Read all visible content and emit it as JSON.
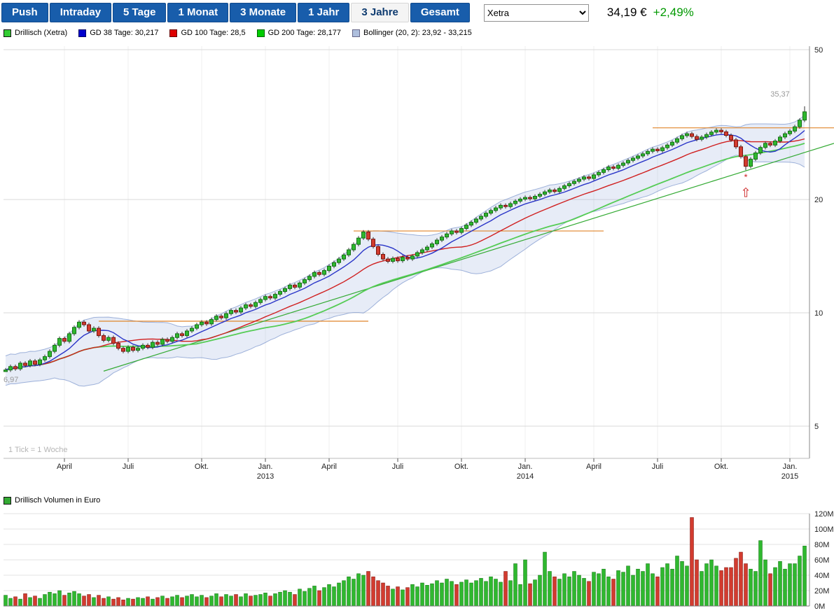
{
  "toolbar": {
    "buttons": [
      {
        "label": "Push",
        "active": false
      },
      {
        "label": "Intraday",
        "active": false
      },
      {
        "label": "5 Tage",
        "active": false
      },
      {
        "label": "1 Monat",
        "active": false
      },
      {
        "label": "3 Monate",
        "active": false
      },
      {
        "label": "1 Jahr",
        "active": false
      },
      {
        "label": "3 Jahre",
        "active": true
      },
      {
        "label": "Gesamt",
        "active": false
      }
    ],
    "exchange_select": {
      "value": "Xetra",
      "options": [
        "Xetra"
      ]
    },
    "price": "34,19 €",
    "change": "+2,49%",
    "change_color": "#009900"
  },
  "legend": {
    "items": [
      {
        "label": "Drillisch (Xetra)",
        "color": "#33cc33",
        "border": "#111111"
      },
      {
        "label": "GD 38 Tage: 30,217",
        "color": "#0000cc",
        "border": "#000066"
      },
      {
        "label": "GD 100 Tage: 28,5",
        "color": "#dd0000",
        "border": "#660000"
      },
      {
        "label": "GD 200 Tage: 28,177",
        "color": "#00cc00",
        "border": "#006600"
      },
      {
        "label": "Bollinger (20, 2): 23,92 - 33,215",
        "color": "#aebfdd",
        "border": "#666688"
      }
    ]
  },
  "volume_legend": {
    "label": "Drillisch Volumen in Euro",
    "color": "#33aa33",
    "border": "#111111"
  },
  "chart_data": [
    {
      "type": "candlestick",
      "title": "Drillisch (Xetra)",
      "timeframe_note": "1 Tick = 1 Woche",
      "y_scale": "log",
      "ylim": [
        4.6,
        52
      ],
      "x_unit": "week",
      "y_ticks": [
        {
          "value": 50,
          "label": "50"
        },
        {
          "value": 20,
          "label": "20"
        },
        {
          "value": 10,
          "label": "10"
        },
        {
          "value": 5,
          "label": "5"
        }
      ],
      "x_ticks": [
        {
          "week": 12,
          "label": "April"
        },
        {
          "week": 25,
          "label": "Juli"
        },
        {
          "week": 40,
          "label": "Okt."
        },
        {
          "week": 53,
          "label": "Jan.",
          "year": "2013"
        },
        {
          "week": 66,
          "label": "April"
        },
        {
          "week": 80,
          "label": "Juli"
        },
        {
          "week": 93,
          "label": "Okt."
        },
        {
          "week": 106,
          "label": "Jan.",
          "year": "2014"
        },
        {
          "week": 120,
          "label": "April"
        },
        {
          "week": 133,
          "label": "Juli"
        },
        {
          "week": 146,
          "label": "Okt."
        },
        {
          "week": 160,
          "label": "Jan.",
          "year": "2015"
        }
      ],
      "closes": [
        7.05,
        7.2,
        7.1,
        7.35,
        7.25,
        7.45,
        7.3,
        7.5,
        7.65,
        7.9,
        8.2,
        8.55,
        8.4,
        8.8,
        9.15,
        9.45,
        9.3,
        8.95,
        9.1,
        8.7,
        8.45,
        8.6,
        8.3,
        8.05,
        7.9,
        8.1,
        7.95,
        8.05,
        8.2,
        8.1,
        8.35,
        8.25,
        8.5,
        8.4,
        8.6,
        8.8,
        8.7,
        8.95,
        9.1,
        9.3,
        9.45,
        9.35,
        9.6,
        9.8,
        9.7,
        9.95,
        10.15,
        10.05,
        10.3,
        10.5,
        10.4,
        10.65,
        10.85,
        11.05,
        10.95,
        11.2,
        11.4,
        11.6,
        11.85,
        11.7,
        12.0,
        12.25,
        12.5,
        12.8,
        12.65,
        12.95,
        13.3,
        13.6,
        13.9,
        14.25,
        14.7,
        15.2,
        15.8,
        16.4,
        15.7,
        15.0,
        14.3,
        13.9,
        13.7,
        13.95,
        13.75,
        14.05,
        13.9,
        14.15,
        14.45,
        14.7,
        14.95,
        15.25,
        15.6,
        15.9,
        16.2,
        16.5,
        16.35,
        16.75,
        17.1,
        17.4,
        17.75,
        18.05,
        18.4,
        18.7,
        19.0,
        19.3,
        19.15,
        19.5,
        19.8,
        20.05,
        20.25,
        20.1,
        20.4,
        20.65,
        20.95,
        21.2,
        21.0,
        21.4,
        21.75,
        22.05,
        22.35,
        22.65,
        22.95,
        22.75,
        23.25,
        23.6,
        24.0,
        24.4,
        24.2,
        24.65,
        25.0,
        25.4,
        25.75,
        26.1,
        26.45,
        26.85,
        27.2,
        26.95,
        27.45,
        27.9,
        28.4,
        29.0,
        29.55,
        29.9,
        29.4,
        28.9,
        29.3,
        29.75,
        30.2,
        30.55,
        30.25,
        29.6,
        28.8,
        27.6,
        26.0,
        24.5,
        25.6,
        26.6,
        27.5,
        28.2,
        27.9,
        28.6,
        29.3,
        29.9,
        30.4,
        31.2,
        32.5,
        34.19
      ],
      "wick_overrides": {
        "0": {
          "low": 6.97
        },
        "151": {
          "low": 23.92
        },
        "163": {
          "high": 35.37
        }
      },
      "up_color": "#2fb82f",
      "up_border": "#157015",
      "down_color": "#d23b2f",
      "down_border": "#7a150f",
      "wick_color": "#333333",
      "moving_averages": [
        {
          "name": "GD 38 Tage",
          "value": "30,217",
          "weeks": 8,
          "color": "#2a35c8",
          "width": 1.4
        },
        {
          "name": "GD 100 Tage",
          "value": "28,5",
          "weeks": 20,
          "color": "#d02020",
          "width": 1.4
        },
        {
          "name": "GD 200 Tage",
          "value": "28,177",
          "weeks": 40,
          "color": "#55cc55",
          "width": 1.8
        }
      ],
      "bollinger": {
        "label": "Bollinger (20, 2)",
        "range": "23,92 - 33,215",
        "window": 20,
        "mult": 2,
        "fill": "rgba(120,150,210,0.18)",
        "edge": "rgba(110,140,200,0.65)"
      },
      "overlay_lines": [
        {
          "kind": "horizontal",
          "level": 9.5,
          "from_week": 19,
          "to_week": 74,
          "color": "#e0852a"
        },
        {
          "kind": "horizontal",
          "level": 16.5,
          "from_week": 71,
          "to_week": 122,
          "color": "#e0852a"
        },
        {
          "kind": "horizontal",
          "level": 31.0,
          "from_week": 132,
          "to_week": 169,
          "color": "#e0852a"
        },
        {
          "kind": "segment",
          "from_week": 20,
          "from_price": 7.0,
          "to_week": 169,
          "to_price": 28.2,
          "color": "#33aa33"
        }
      ],
      "annotations": [
        {
          "text": "35,37",
          "week": 158,
          "price": 37.5,
          "color": "#999999",
          "anchor": "middle"
        },
        {
          "text": "6,97",
          "week": 0,
          "price": 6.55,
          "color": "#999999",
          "anchor": "start"
        }
      ],
      "signal_marker": {
        "week": 151,
        "star": "*",
        "arrow": "⇧",
        "color": "#cc2222"
      }
    },
    {
      "type": "bar",
      "title": "Drillisch Volumen in Euro",
      "unit": "M",
      "ylim": [
        0,
        120
      ],
      "y_ticks": [
        {
          "value": 120,
          "label": "120M"
        },
        {
          "value": 100,
          "label": "100M"
        },
        {
          "value": 80,
          "label": "80M"
        },
        {
          "value": 60,
          "label": "60M"
        },
        {
          "value": 40,
          "label": "40M"
        },
        {
          "value": 20,
          "label": "20M"
        },
        {
          "value": 0,
          "label": "0M"
        }
      ],
      "values": [
        14,
        10,
        12,
        9,
        16,
        11,
        13,
        10,
        15,
        18,
        16,
        20,
        14,
        17,
        19,
        16,
        13,
        15,
        11,
        14,
        10,
        12,
        9,
        11,
        8,
        10,
        9,
        11,
        10,
        12,
        9,
        11,
        13,
        10,
        12,
        14,
        11,
        13,
        15,
        12,
        14,
        11,
        13,
        16,
        12,
        15,
        13,
        15,
        12,
        16,
        13,
        14,
        15,
        17,
        13,
        16,
        18,
        20,
        18,
        15,
        22,
        19,
        23,
        26,
        20,
        24,
        28,
        25,
        30,
        33,
        38,
        35,
        42,
        40,
        45,
        38,
        33,
        30,
        26,
        22,
        25,
        21,
        24,
        28,
        25,
        30,
        27,
        29,
        33,
        30,
        35,
        32,
        28,
        31,
        34,
        30,
        33,
        36,
        32,
        38,
        35,
        31,
        45,
        33,
        55,
        28,
        60,
        29,
        34,
        40,
        70,
        45,
        38,
        35,
        42,
        38,
        45,
        40,
        36,
        32,
        44,
        42,
        48,
        38,
        35,
        46,
        44,
        52,
        40,
        48,
        45,
        55,
        42,
        38,
        50,
        55,
        48,
        65,
        58,
        52,
        115,
        60,
        45,
        55,
        60,
        52,
        46,
        50,
        50,
        62,
        70,
        55,
        48,
        45,
        85,
        60,
        42,
        50,
        58,
        48,
        55,
        55,
        65,
        78
      ],
      "color_rule": "up_down_from_price_panel"
    }
  ]
}
